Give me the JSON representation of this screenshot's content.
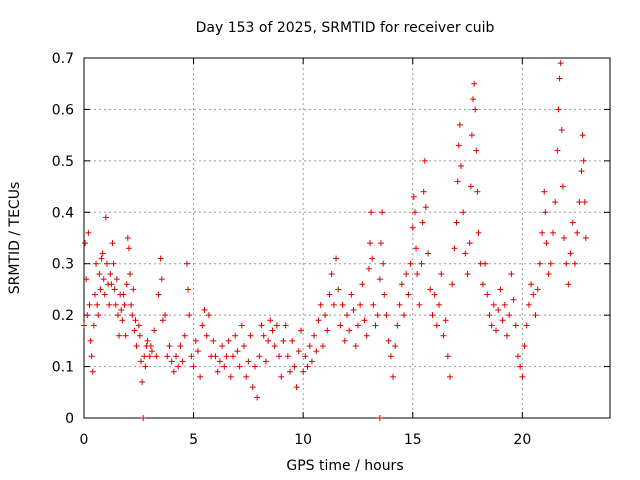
{
  "chart_data": {
    "type": "scatter",
    "title": "Day 153 of 2025, SRMTID for receiver cuib",
    "xlabel": "GPS time / hours",
    "ylabel": "SRMTID / TECUs",
    "xlim": [
      0,
      24
    ],
    "ylim": [
      0,
      0.7
    ],
    "xticks": [
      0,
      5,
      10,
      15,
      20
    ],
    "xtick_labels": [
      "0",
      "5",
      "10",
      "15",
      "20"
    ],
    "yticks": [
      0,
      0.1,
      0.2,
      0.3,
      0.4,
      0.5,
      0.6,
      0.7
    ],
    "ytick_labels": [
      "0",
      "0.1",
      "0.2",
      "0.3",
      "0.4",
      "0.5",
      "0.6",
      "0.7"
    ],
    "grid": true,
    "marker": "plus",
    "series_color": "#dd0000",
    "series": [
      {
        "name": "SRMTID",
        "points": [
          [
            0.0,
            0.18
          ],
          [
            0.05,
            0.34
          ],
          [
            0.1,
            0.27
          ],
          [
            0.15,
            0.2
          ],
          [
            0.2,
            0.36
          ],
          [
            0.25,
            0.22
          ],
          [
            0.3,
            0.15
          ],
          [
            0.35,
            0.12
          ],
          [
            0.4,
            0.09
          ],
          [
            0.45,
            0.18
          ],
          [
            0.5,
            0.24
          ],
          [
            0.55,
            0.3
          ],
          [
            0.6,
            0.22
          ],
          [
            0.65,
            0.2
          ],
          [
            0.7,
            0.28
          ],
          [
            0.75,
            0.25
          ],
          [
            0.8,
            0.31
          ],
          [
            0.85,
            0.32
          ],
          [
            0.9,
            0.27
          ],
          [
            0.95,
            0.24
          ],
          [
            1.0,
            0.39
          ],
          [
            1.05,
            0.3
          ],
          [
            1.1,
            0.26
          ],
          [
            1.15,
            0.22
          ],
          [
            1.2,
            0.28
          ],
          [
            1.25,
            0.26
          ],
          [
            1.3,
            0.34
          ],
          [
            1.35,
            0.3
          ],
          [
            1.4,
            0.25
          ],
          [
            1.45,
            0.22
          ],
          [
            1.5,
            0.27
          ],
          [
            1.55,
            0.2
          ],
          [
            1.6,
            0.16
          ],
          [
            1.65,
            0.24
          ],
          [
            1.7,
            0.21
          ],
          [
            1.75,
            0.19
          ],
          [
            1.8,
            0.24
          ],
          [
            1.85,
            0.22
          ],
          [
            1.9,
            0.16
          ],
          [
            1.95,
            0.26
          ],
          [
            2.0,
            0.35
          ],
          [
            2.05,
            0.33
          ],
          [
            2.1,
            0.28
          ],
          [
            2.15,
            0.22
          ],
          [
            2.2,
            0.2
          ],
          [
            2.25,
            0.25
          ],
          [
            2.3,
            0.17
          ],
          [
            2.35,
            0.19
          ],
          [
            2.4,
            0.14
          ],
          [
            2.5,
            0.18
          ],
          [
            2.55,
            0.16
          ],
          [
            2.6,
            0.11
          ],
          [
            2.65,
            0.07
          ],
          [
            2.7,
            0.0
          ],
          [
            2.75,
            0.12
          ],
          [
            2.8,
            0.1
          ],
          [
            2.85,
            0.14
          ],
          [
            2.9,
            0.15
          ],
          [
            3.0,
            0.12
          ],
          [
            3.05,
            0.14
          ],
          [
            3.1,
            0.13
          ],
          [
            3.2,
            0.17
          ],
          [
            3.3,
            0.12
          ],
          [
            3.4,
            0.24
          ],
          [
            3.5,
            0.31
          ],
          [
            3.55,
            0.27
          ],
          [
            3.6,
            0.19
          ],
          [
            3.7,
            0.2
          ],
          [
            3.8,
            0.12
          ],
          [
            3.9,
            0.14
          ],
          [
            4.0,
            0.11
          ],
          [
            4.1,
            0.09
          ],
          [
            4.2,
            0.12
          ],
          [
            4.3,
            0.1
          ],
          [
            4.4,
            0.14
          ],
          [
            4.5,
            0.11
          ],
          [
            4.6,
            0.16
          ],
          [
            4.7,
            0.3
          ],
          [
            4.75,
            0.25
          ],
          [
            4.8,
            0.2
          ],
          [
            4.9,
            0.12
          ],
          [
            5.0,
            0.1
          ],
          [
            5.1,
            0.15
          ],
          [
            5.2,
            0.13
          ],
          [
            5.3,
            0.08
          ],
          [
            5.4,
            0.18
          ],
          [
            5.5,
            0.21
          ],
          [
            5.6,
            0.16
          ],
          [
            5.7,
            0.2
          ],
          [
            5.8,
            0.12
          ],
          [
            5.9,
            0.15
          ],
          [
            6.0,
            0.12
          ],
          [
            6.1,
            0.09
          ],
          [
            6.2,
            0.11
          ],
          [
            6.3,
            0.14
          ],
          [
            6.4,
            0.1
          ],
          [
            6.5,
            0.12
          ],
          [
            6.6,
            0.15
          ],
          [
            6.7,
            0.08
          ],
          [
            6.8,
            0.12
          ],
          [
            6.9,
            0.16
          ],
          [
            7.0,
            0.13
          ],
          [
            7.1,
            0.1
          ],
          [
            7.2,
            0.18
          ],
          [
            7.3,
            0.14
          ],
          [
            7.4,
            0.08
          ],
          [
            7.5,
            0.11
          ],
          [
            7.6,
            0.16
          ],
          [
            7.7,
            0.06
          ],
          [
            7.8,
            0.1
          ],
          [
            7.9,
            0.04
          ],
          [
            8.0,
            0.12
          ],
          [
            8.1,
            0.18
          ],
          [
            8.2,
            0.16
          ],
          [
            8.3,
            0.11
          ],
          [
            8.4,
            0.15
          ],
          [
            8.5,
            0.19
          ],
          [
            8.6,
            0.17
          ],
          [
            8.7,
            0.14
          ],
          [
            8.8,
            0.18
          ],
          [
            8.9,
            0.12
          ],
          [
            9.0,
            0.08
          ],
          [
            9.1,
            0.15
          ],
          [
            9.2,
            0.18
          ],
          [
            9.3,
            0.12
          ],
          [
            9.4,
            0.09
          ],
          [
            9.5,
            0.15
          ],
          [
            9.6,
            0.1
          ],
          [
            9.7,
            0.06
          ],
          [
            9.8,
            0.13
          ],
          [
            9.9,
            0.17
          ],
          [
            10.0,
            0.09
          ],
          [
            10.1,
            0.12
          ],
          [
            10.2,
            0.1
          ],
          [
            10.3,
            0.14
          ],
          [
            10.4,
            0.11
          ],
          [
            10.5,
            0.16
          ],
          [
            10.6,
            0.13
          ],
          [
            10.7,
            0.19
          ],
          [
            10.8,
            0.22
          ],
          [
            10.9,
            0.14
          ],
          [
            11.0,
            0.2
          ],
          [
            11.1,
            0.17
          ],
          [
            11.2,
            0.24
          ],
          [
            11.3,
            0.28
          ],
          [
            11.4,
            0.22
          ],
          [
            11.5,
            0.31
          ],
          [
            11.6,
            0.25
          ],
          [
            11.7,
            0.18
          ],
          [
            11.8,
            0.22
          ],
          [
            11.9,
            0.15
          ],
          [
            12.0,
            0.2
          ],
          [
            12.1,
            0.17
          ],
          [
            12.2,
            0.24
          ],
          [
            12.3,
            0.21
          ],
          [
            12.4,
            0.14
          ],
          [
            12.5,
            0.18
          ],
          [
            12.6,
            0.22
          ],
          [
            12.7,
            0.26
          ],
          [
            12.8,
            0.19
          ],
          [
            12.9,
            0.16
          ],
          [
            13.0,
            0.29
          ],
          [
            13.05,
            0.34
          ],
          [
            13.1,
            0.4
          ],
          [
            13.15,
            0.31
          ],
          [
            13.2,
            0.22
          ],
          [
            13.3,
            0.18
          ],
          [
            13.4,
            0.2
          ],
          [
            13.5,
            0.27
          ],
          [
            13.55,
            0.34
          ],
          [
            13.6,
            0.4
          ],
          [
            13.65,
            0.3
          ],
          [
            13.7,
            0.24
          ],
          [
            13.8,
            0.2
          ],
          [
            13.9,
            0.15
          ],
          [
            14.0,
            0.12
          ],
          [
            14.1,
            0.08
          ],
          [
            14.2,
            0.14
          ],
          [
            14.3,
            0.18
          ],
          [
            14.4,
            0.22
          ],
          [
            14.5,
            0.26
          ],
          [
            14.6,
            0.2
          ],
          [
            14.7,
            0.28
          ],
          [
            14.8,
            0.24
          ],
          [
            14.9,
            0.3
          ],
          [
            15.0,
            0.37
          ],
          [
            15.05,
            0.43
          ],
          [
            15.1,
            0.4
          ],
          [
            15.15,
            0.33
          ],
          [
            15.2,
            0.28
          ],
          [
            15.3,
            0.22
          ],
          [
            15.4,
            0.3
          ],
          [
            15.45,
            0.38
          ],
          [
            15.5,
            0.44
          ],
          [
            15.55,
            0.5
          ],
          [
            15.6,
            0.41
          ],
          [
            15.7,
            0.32
          ],
          [
            15.8,
            0.25
          ],
          [
            15.9,
            0.2
          ],
          [
            16.0,
            0.24
          ],
          [
            16.1,
            0.18
          ],
          [
            16.2,
            0.22
          ],
          [
            16.3,
            0.28
          ],
          [
            16.4,
            0.16
          ],
          [
            16.5,
            0.19
          ],
          [
            16.6,
            0.12
          ],
          [
            16.7,
            0.08
          ],
          [
            16.8,
            0.26
          ],
          [
            16.9,
            0.33
          ],
          [
            17.0,
            0.38
          ],
          [
            17.05,
            0.46
          ],
          [
            17.1,
            0.53
          ],
          [
            17.15,
            0.57
          ],
          [
            17.2,
            0.49
          ],
          [
            17.3,
            0.4
          ],
          [
            17.4,
            0.32
          ],
          [
            17.5,
            0.28
          ],
          [
            17.6,
            0.34
          ],
          [
            17.65,
            0.45
          ],
          [
            17.7,
            0.55
          ],
          [
            17.75,
            0.62
          ],
          [
            17.8,
            0.65
          ],
          [
            17.85,
            0.6
          ],
          [
            17.9,
            0.52
          ],
          [
            17.95,
            0.44
          ],
          [
            18.0,
            0.36
          ],
          [
            18.1,
            0.3
          ],
          [
            18.2,
            0.26
          ],
          [
            18.3,
            0.3
          ],
          [
            18.4,
            0.24
          ],
          [
            18.5,
            0.2
          ],
          [
            18.6,
            0.18
          ],
          [
            18.7,
            0.22
          ],
          [
            18.8,
            0.17
          ],
          [
            18.9,
            0.21
          ],
          [
            19.0,
            0.25
          ],
          [
            19.1,
            0.19
          ],
          [
            19.2,
            0.22
          ],
          [
            19.3,
            0.16
          ],
          [
            19.4,
            0.2
          ],
          [
            19.5,
            0.28
          ],
          [
            19.6,
            0.23
          ],
          [
            19.7,
            0.18
          ],
          [
            19.8,
            0.12
          ],
          [
            19.9,
            0.1
          ],
          [
            20.0,
            0.08
          ],
          [
            20.1,
            0.14
          ],
          [
            20.2,
            0.18
          ],
          [
            20.3,
            0.22
          ],
          [
            20.4,
            0.26
          ],
          [
            20.5,
            0.24
          ],
          [
            20.6,
            0.2
          ],
          [
            20.7,
            0.25
          ],
          [
            20.8,
            0.3
          ],
          [
            20.9,
            0.36
          ],
          [
            21.0,
            0.44
          ],
          [
            21.05,
            0.4
          ],
          [
            21.1,
            0.34
          ],
          [
            21.2,
            0.28
          ],
          [
            21.3,
            0.3
          ],
          [
            21.4,
            0.36
          ],
          [
            21.5,
            0.42
          ],
          [
            21.6,
            0.52
          ],
          [
            21.65,
            0.6
          ],
          [
            21.7,
            0.66
          ],
          [
            21.75,
            0.69
          ],
          [
            21.8,
            0.56
          ],
          [
            21.85,
            0.45
          ],
          [
            21.9,
            0.35
          ],
          [
            22.0,
            0.3
          ],
          [
            22.1,
            0.26
          ],
          [
            22.2,
            0.32
          ],
          [
            22.3,
            0.38
          ],
          [
            22.4,
            0.3
          ],
          [
            22.5,
            0.36
          ],
          [
            22.6,
            0.42
          ],
          [
            22.7,
            0.48
          ],
          [
            22.75,
            0.55
          ],
          [
            22.8,
            0.5
          ],
          [
            22.85,
            0.42
          ],
          [
            22.9,
            0.35
          ],
          [
            13.5,
            0.0
          ]
        ]
      }
    ]
  }
}
